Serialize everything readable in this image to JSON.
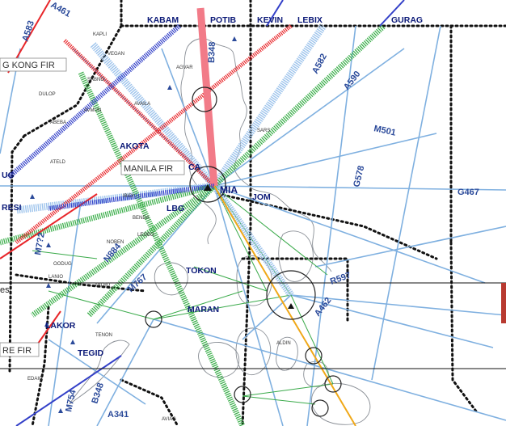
{
  "title": "",
  "colors": {
    "background": "#ffffff",
    "coast": "#8a8f96",
    "route_light_blue": "#7fb0e0",
    "route_green": "#3aaa4a",
    "route_red": "#e8262a",
    "route_pink": "#f05a6a",
    "route_blue": "#3340c8",
    "route_orange": "#f0a818",
    "fir_boundary": "#111111",
    "waypoint_text": "#0c1a78"
  },
  "fir_labels": [
    {
      "id": "hong-kong",
      "text": "G KONG FIR"
    },
    {
      "id": "manila",
      "text": "MANILA FIR"
    },
    {
      "id": "re",
      "text": "RE FIR"
    }
  ],
  "waypoints_major": [
    {
      "id": "kabam",
      "text": "KABAM"
    },
    {
      "id": "potib",
      "text": "POTIB"
    },
    {
      "id": "kevin",
      "text": "KEVIN"
    },
    {
      "id": "lebix",
      "text": "LEBIX"
    },
    {
      "id": "gurag",
      "text": "GURAG"
    },
    {
      "id": "akota",
      "text": "AKOTA"
    },
    {
      "id": "ca",
      "text": "CA"
    },
    {
      "id": "mia",
      "text": "MIA"
    },
    {
      "id": "jom",
      "text": "JOM"
    },
    {
      "id": "lbg",
      "text": "LBG"
    },
    {
      "id": "resi",
      "text": "RESI"
    },
    {
      "id": "ug",
      "text": "UG"
    },
    {
      "id": "tokon",
      "text": "TOKON"
    },
    {
      "id": "maran",
      "text": "MARAN"
    },
    {
      "id": "lakor",
      "text": "LAKOR"
    },
    {
      "id": "tegid",
      "text": "TEGID"
    }
  ],
  "route_labels": [
    {
      "id": "a583",
      "text": "A583"
    },
    {
      "id": "b348",
      "text": "B348"
    },
    {
      "id": "a582",
      "text": "A582"
    },
    {
      "id": "a590",
      "text": "A590"
    },
    {
      "id": "m501",
      "text": "M501"
    },
    {
      "id": "g578",
      "text": "G578"
    },
    {
      "id": "g467",
      "text": "G467"
    },
    {
      "id": "n884",
      "text": "N884"
    },
    {
      "id": "m767",
      "text": "M767"
    },
    {
      "id": "r597",
      "text": "R597"
    },
    {
      "id": "a462",
      "text": "A462"
    },
    {
      "id": "m754",
      "text": "M754"
    },
    {
      "id": "b348-south",
      "text": "B348"
    },
    {
      "id": "a341",
      "text": "A341"
    },
    {
      "id": "m7-32",
      "text": "M7?2"
    },
    {
      "id": "a461",
      "text": "A461"
    }
  ],
  "small_labels": [
    {
      "id": "kapli",
      "text": "KAPLI"
    },
    {
      "id": "vegan",
      "text": "VEGAN"
    },
    {
      "id": "agvar",
      "text": "AGVAR"
    },
    {
      "id": "sabno",
      "text": "SABNO"
    },
    {
      "id": "dulop",
      "text": "DULOP"
    },
    {
      "id": "abeba",
      "text": "ABEBA"
    },
    {
      "id": "avmun",
      "text": "AVMUN"
    },
    {
      "id": "availa",
      "text": "AVAILA"
    },
    {
      "id": "ateld",
      "text": "ATELD"
    },
    {
      "id": "ibidi",
      "text": "IBIDI"
    },
    {
      "id": "benda",
      "text": "BENDA"
    },
    {
      "id": "legeo",
      "text": "LEGEO"
    },
    {
      "id": "noben",
      "text": "NOBEN"
    },
    {
      "id": "oodug",
      "text": "OODUG"
    },
    {
      "id": "lanio",
      "text": "LANIO"
    },
    {
      "id": "milbu",
      "text": "MILBU"
    },
    {
      "id": "tenon",
      "text": "TENON"
    },
    {
      "id": "aldin",
      "text": "ALDIN"
    },
    {
      "id": "edaig",
      "text": "EDAIG"
    },
    {
      "id": "aviag",
      "text": "AVIAG"
    },
    {
      "id": "sars",
      "text": "SARS"
    },
    {
      "id": "es",
      "text": "es"
    }
  ]
}
